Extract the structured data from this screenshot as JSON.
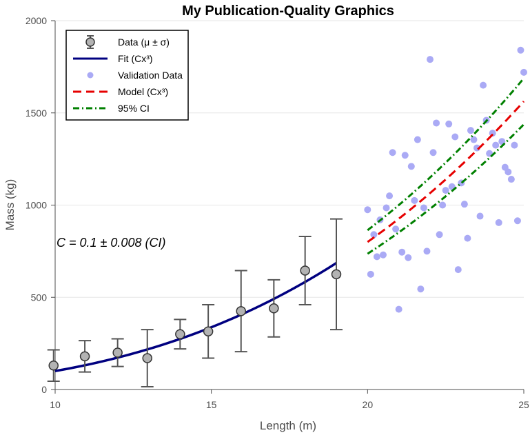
{
  "chart_data": {
    "type": "scatter",
    "title": "My Publication-Quality Graphics",
    "xlabel": "Length (m)",
    "ylabel": "Mass (kg)",
    "xlim": [
      10,
      25
    ],
    "ylim": [
      0,
      2000
    ],
    "xticks": [
      10,
      15,
      20,
      25
    ],
    "yticks": [
      0,
      500,
      1000,
      1500,
      2000
    ],
    "ygrid": true,
    "legend_position": "top-left",
    "annotation": "C = 0.1 ± 0.008 (CI)",
    "series": [
      {
        "name": "Data (μ ± σ)",
        "kind": "errorbar",
        "color": "#555555",
        "fill": "#b3b3b3",
        "x": [
          9.95,
          10.95,
          12.0,
          12.95,
          14.0,
          14.9,
          15.95,
          17.0,
          18.0,
          19.0
        ],
        "y": [
          130,
          180,
          200,
          170,
          300,
          315,
          425,
          440,
          645,
          625
        ],
        "err": [
          85,
          85,
          75,
          155,
          80,
          145,
          220,
          155,
          185,
          300
        ]
      },
      {
        "name": "Fit (Cx³)",
        "kind": "curve",
        "color": "#000080",
        "coef": 0.1,
        "x_range": [
          10,
          19
        ]
      },
      {
        "name": "Validation Data",
        "kind": "scatter",
        "color": "#aaaaf5",
        "x": [
          20.0,
          20.1,
          20.2,
          20.3,
          20.4,
          20.5,
          20.6,
          20.7,
          20.8,
          20.9,
          21.0,
          21.1,
          21.2,
          21.3,
          21.4,
          21.5,
          21.6,
          21.7,
          21.8,
          21.9,
          22.0,
          22.1,
          22.2,
          22.3,
          22.4,
          22.5,
          22.6,
          22.7,
          22.8,
          22.9,
          23.0,
          23.1,
          23.2,
          23.3,
          23.4,
          23.5,
          23.6,
          23.7,
          23.8,
          23.9,
          24.0,
          24.1,
          24.2,
          24.3,
          24.4,
          24.5,
          24.6,
          24.7,
          24.8,
          24.9,
          25.0
        ],
        "y": [
          975,
          625,
          840,
          720,
          920,
          730,
          985,
          1050,
          1285,
          870,
          435,
          745,
          1270,
          715,
          1210,
          1025,
          1355,
          545,
          985,
          750,
          1790,
          1285,
          1445,
          840,
          1000,
          1080,
          1440,
          1100,
          1370,
          650,
          1120,
          1005,
          820,
          1405,
          1355,
          1310,
          940,
          1650,
          1460,
          1280,
          1390,
          1325,
          905,
          1345,
          1205,
          1180,
          1140,
          1325,
          915,
          1840,
          1720
        ]
      },
      {
        "name": "Model (Cx³)",
        "kind": "curve",
        "color": "#e60000",
        "dash": "dashed",
        "coef": 0.1,
        "x_range": [
          20,
          25
        ]
      },
      {
        "name": "95% CI",
        "kind": "band",
        "color": "#008000",
        "dash": "dashdot",
        "coef_low": 0.092,
        "coef_high": 0.108,
        "x_range": [
          20,
          25
        ]
      }
    ]
  }
}
